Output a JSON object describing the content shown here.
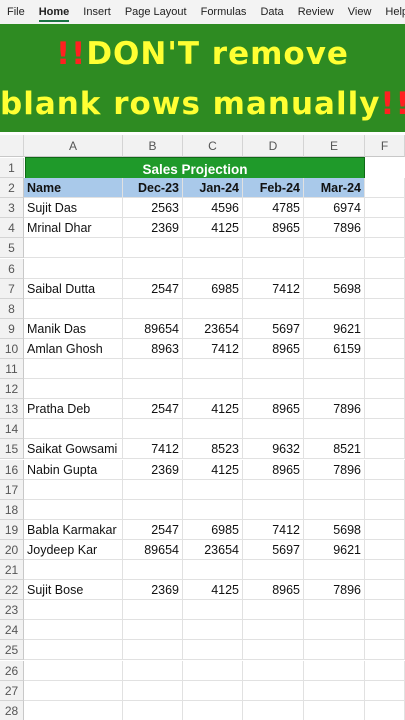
{
  "menu": [
    "File",
    "Home",
    "Insert",
    "Page Layout",
    "Formulas",
    "Data",
    "Review",
    "View",
    "Help"
  ],
  "menu_active": "Home",
  "banner": {
    "line1_mark": "!!",
    "line1_text": "DON'T remove",
    "line2_text": "blank rows manually",
    "line2_mark": "!!"
  },
  "columns": [
    "A",
    "B",
    "C",
    "D",
    "E",
    "F"
  ],
  "sheet_title": "Sales Projection",
  "headers": [
    "Name",
    "Dec-23",
    "Jan-24",
    "Feb-24",
    "Mar-24"
  ],
  "rows": [
    {
      "n": 1,
      "cells": null
    },
    {
      "n": 2,
      "cells": "header"
    },
    {
      "n": 3,
      "cells": [
        "Sujit Das",
        "2563",
        "4596",
        "4785",
        "6974"
      ]
    },
    {
      "n": 4,
      "cells": [
        "Mrinal Dhar",
        "2369",
        "4125",
        "8965",
        "7896"
      ]
    },
    {
      "n": 5,
      "cells": []
    },
    {
      "n": 6,
      "cells": []
    },
    {
      "n": 7,
      "cells": [
        "Saibal Dutta",
        "2547",
        "6985",
        "7412",
        "5698"
      ]
    },
    {
      "n": 8,
      "cells": []
    },
    {
      "n": 9,
      "cells": [
        "Manik Das",
        "89654",
        "23654",
        "5697",
        "9621"
      ]
    },
    {
      "n": 10,
      "cells": [
        "Amlan Ghosh",
        "8963",
        "7412",
        "8965",
        "6159"
      ]
    },
    {
      "n": 11,
      "cells": []
    },
    {
      "n": 12,
      "cells": []
    },
    {
      "n": 13,
      "cells": [
        "Pratha Deb",
        "2547",
        "4125",
        "8965",
        "7896"
      ]
    },
    {
      "n": 14,
      "cells": []
    },
    {
      "n": 15,
      "cells": [
        "Saikat Gowsami",
        "7412",
        "8523",
        "9632",
        "8521"
      ]
    },
    {
      "n": 16,
      "cells": [
        "Nabin Gupta",
        "2369",
        "4125",
        "8965",
        "7896"
      ]
    },
    {
      "n": 17,
      "cells": []
    },
    {
      "n": 18,
      "cells": []
    },
    {
      "n": 19,
      "cells": [
        "Babla Karmakar",
        "2547",
        "6985",
        "7412",
        "5698"
      ]
    },
    {
      "n": 20,
      "cells": [
        "Joydeep Kar",
        "89654",
        "23654",
        "5697",
        "9621"
      ]
    },
    {
      "n": 21,
      "cells": []
    },
    {
      "n": 22,
      "cells": [
        "Sujit Bose",
        "2369",
        "4125",
        "8965",
        "7896"
      ]
    },
    {
      "n": 23,
      "cells": []
    },
    {
      "n": 24,
      "cells": []
    },
    {
      "n": 25,
      "cells": []
    },
    {
      "n": 26,
      "cells": []
    },
    {
      "n": 27,
      "cells": []
    },
    {
      "n": 28,
      "cells": []
    }
  ],
  "colors": {
    "title_fill": "#1f9a2a",
    "header_fill": "#a9c9ea",
    "banner_bg": "#2e8b22",
    "banner_text": "#ffff33",
    "banner_mark": "#ff2020"
  }
}
